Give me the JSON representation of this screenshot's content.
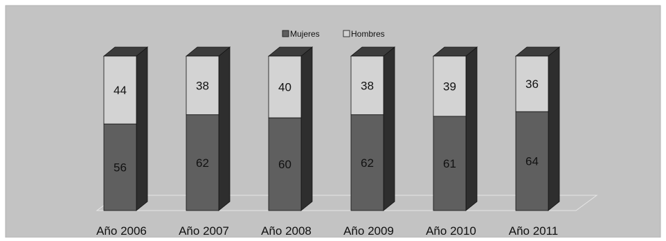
{
  "chart_data": {
    "type": "bar",
    "stacked": true,
    "three_d": true,
    "categories": [
      "Año 2006",
      "Año 2007",
      "Año 2008",
      "Año 2009",
      "Año 2010",
      "Año 2011"
    ],
    "series": [
      {
        "name": "Mujeres",
        "values": [
          56,
          62,
          60,
          62,
          61,
          64
        ]
      },
      {
        "name": "Hombres",
        "values": [
          44,
          38,
          40,
          38,
          39,
          36
        ]
      }
    ],
    "value_labels": {
      "Mujeres": [
        "56",
        "62",
        "60",
        "62",
        "61",
        "64"
      ],
      "Hombres": [
        "44",
        "38",
        "40",
        "38",
        "39",
        "36"
      ]
    },
    "ylim": [
      0,
      100
    ],
    "legend_position": "top-center",
    "grid": false,
    "colors": {
      "Mujeres": "#5f5f5f",
      "Hombres": "#d3d3d3",
      "plot_area": "#c3c3c3",
      "side_dark": "#2e2e2e",
      "top_dark": "#3c3c3c"
    }
  }
}
